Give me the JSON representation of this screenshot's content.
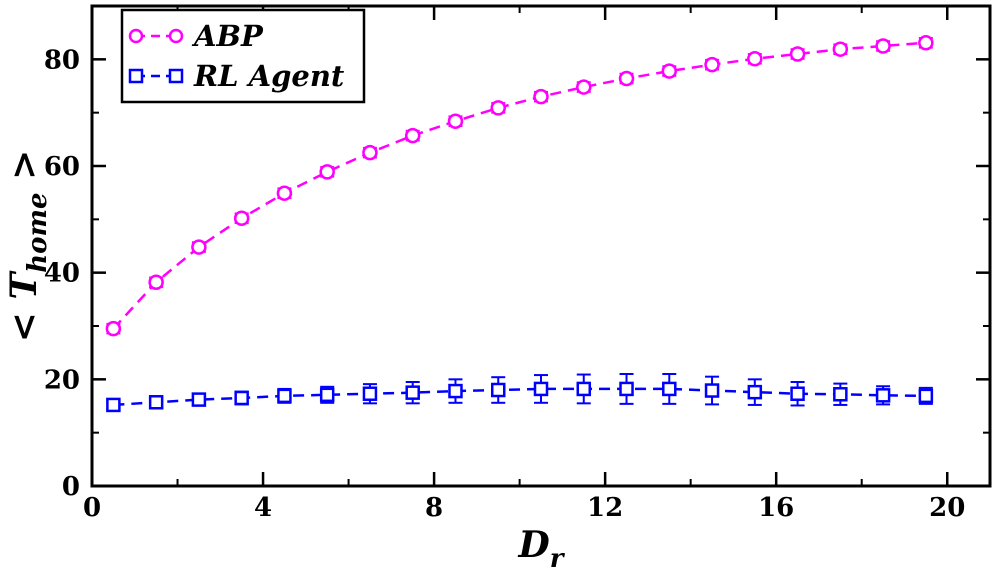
{
  "chart_data": {
    "type": "line",
    "xlabel": {
      "main": "D",
      "sub": "r"
    },
    "ylabel": {
      "left": "< ",
      "main": "T",
      "sub": "home",
      "right": " >"
    },
    "xlim": [
      0,
      21
    ],
    "ylim": [
      0,
      90
    ],
    "xticks": [
      0,
      4,
      8,
      12,
      16,
      20
    ],
    "yticks": [
      0,
      20,
      40,
      60,
      80
    ],
    "x": [
      0.5,
      1.5,
      2.5,
      3.5,
      4.5,
      5.5,
      6.5,
      7.5,
      8.5,
      9.5,
      10.5,
      11.5,
      12.5,
      13.5,
      14.5,
      15.5,
      16.5,
      17.5,
      18.5,
      19.5
    ],
    "grid": false,
    "legend_position": "top-left",
    "series": [
      {
        "name": "ABP",
        "color": "#ff00ff",
        "marker": "circle",
        "values": [
          29.5,
          38.2,
          44.8,
          50.2,
          54.9,
          58.9,
          62.5,
          65.7,
          68.4,
          70.9,
          73.0,
          74.8,
          76.4,
          77.8,
          79.0,
          80.1,
          81.0,
          81.9,
          82.5,
          83.1
        ],
        "errors": [
          0.9,
          0.9,
          0.9,
          0.9,
          0.9,
          0.9,
          0.9,
          0.9,
          0.9,
          0.9,
          0.9,
          0.9,
          0.9,
          0.9,
          0.9,
          0.9,
          0.9,
          0.9,
          0.9,
          0.9
        ]
      },
      {
        "name": "RL Agent",
        "color": "#0000ff",
        "marker": "square",
        "values": [
          15.2,
          15.7,
          16.2,
          16.5,
          16.9,
          17.1,
          17.3,
          17.5,
          17.8,
          18.0,
          18.2,
          18.2,
          18.2,
          18.2,
          17.9,
          17.6,
          17.3,
          17.2,
          17.0,
          16.9
        ],
        "errors": [
          0.8,
          1.0,
          1.1,
          1.2,
          1.3,
          1.5,
          1.8,
          2.0,
          2.2,
          2.4,
          2.6,
          2.7,
          2.8,
          2.8,
          2.6,
          2.4,
          2.2,
          2.0,
          1.7,
          1.5
        ]
      }
    ]
  }
}
